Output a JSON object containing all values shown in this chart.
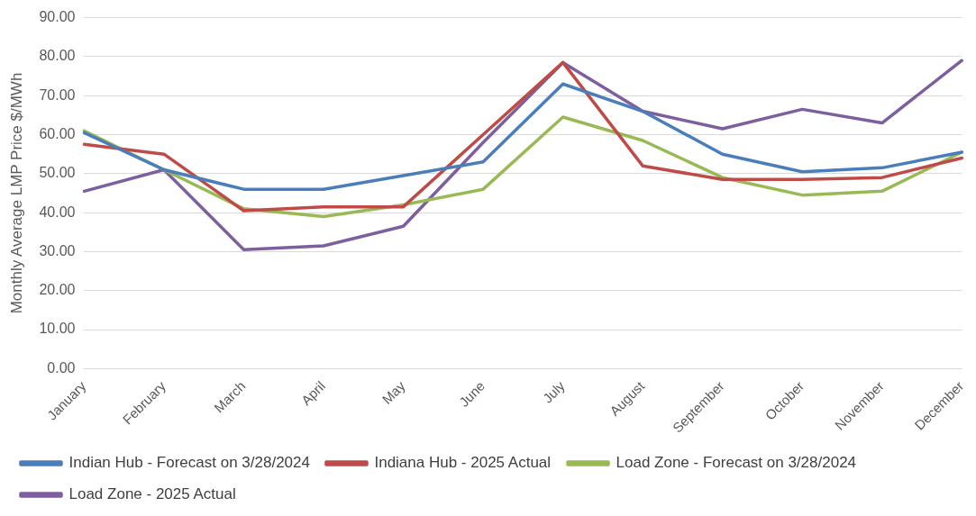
{
  "chart_data": {
    "type": "line",
    "ylabel": "Monthly Average LMP Price $/MWh",
    "categories": [
      "January",
      "February",
      "March",
      "April",
      "May",
      "June",
      "July",
      "August",
      "September",
      "October",
      "November",
      "December"
    ],
    "series": [
      {
        "name": "Indian Hub - Forecast on 3/28/2024",
        "color": "#4a7ebb",
        "values": [
          60.5,
          51,
          46,
          46,
          49.5,
          53,
          73,
          66,
          55,
          50.5,
          51.5,
          55.5
        ]
      },
      {
        "name": "Indiana Hub - 2025 Actual",
        "color": "#be4b48",
        "values": [
          57.5,
          55,
          40.5,
          41.5,
          41.5,
          60,
          78.5,
          52,
          48.5,
          48.5,
          49,
          54
        ]
      },
      {
        "name": "Load Zone - Forecast on 3/28/2024",
        "color": "#98b954",
        "values": [
          61,
          51,
          41,
          39,
          42,
          46,
          64.5,
          58.5,
          49,
          44.5,
          45.5,
          55.5
        ]
      },
      {
        "name": "Load Zone - 2025 Actual",
        "color": "#7d5fa0",
        "values": [
          45.5,
          51,
          30.5,
          31.5,
          36.5,
          58,
          78.5,
          66,
          61.5,
          66.5,
          63,
          79
        ]
      }
    ],
    "ylim": [
      0,
      90
    ],
    "yticks": [
      {
        "value": 0,
        "label": "0.00"
      },
      {
        "value": 10,
        "label": "10.00"
      },
      {
        "value": 20,
        "label": "20.00"
      },
      {
        "value": 30,
        "label": "30.00"
      },
      {
        "value": 40,
        "label": "40.00"
      },
      {
        "value": 50,
        "label": "50.00"
      },
      {
        "value": 60,
        "label": "60.00"
      },
      {
        "value": 70,
        "label": "70.00"
      },
      {
        "value": 80,
        "label": "80.00"
      },
      {
        "value": 90,
        "label": "90.00"
      }
    ],
    "grid": "y",
    "legend": "bottom",
    "marker": "none",
    "line_style": "solid"
  }
}
